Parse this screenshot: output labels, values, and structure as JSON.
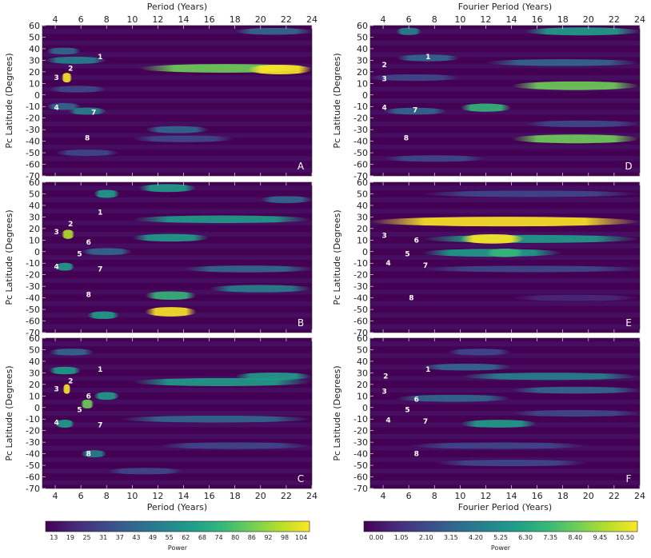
{
  "chart_data": {
    "type": "heatmap",
    "panels": [
      {
        "id": "A",
        "label": "A",
        "column": "left",
        "bands": [
          {
            "lat": 23,
            "p0": 10.5,
            "p1": 24,
            "i": 0.75
          },
          {
            "lat": 22,
            "p0": 19,
            "p1": 24,
            "i": 1.0
          },
          {
            "lat": 15,
            "p0": 4.5,
            "p1": 5.3,
            "i": 1.0
          },
          {
            "lat": 30,
            "p0": 3.2,
            "p1": 8,
            "i": 0.4
          },
          {
            "lat": -14,
            "p0": 5,
            "p1": 8,
            "i": 0.4
          },
          {
            "lat": -30,
            "p0": 11,
            "p1": 16,
            "i": 0.35
          },
          {
            "lat": 55,
            "p0": 18,
            "p1": 24,
            "i": 0.3
          },
          {
            "lat": -38,
            "p0": 10,
            "p1": 18,
            "i": 0.25
          },
          {
            "lat": -10,
            "p0": 3.3,
            "p1": 6,
            "i": 0.35
          },
          {
            "lat": -50,
            "p0": 4,
            "p1": 9,
            "i": 0.2
          },
          {
            "lat": 5,
            "p0": 3.5,
            "p1": 8,
            "i": 0.25
          },
          {
            "lat": 38,
            "p0": 3.3,
            "p1": 6,
            "i": 0.3
          }
        ]
      },
      {
        "id": "B",
        "label": "B",
        "column": "left",
        "bands": [
          {
            "lat": -52,
            "p0": 11,
            "p1": 15,
            "i": 0.95
          },
          {
            "lat": -38,
            "p0": 11,
            "p1": 15,
            "i": 0.7
          },
          {
            "lat": 55,
            "p0": 10.5,
            "p1": 15,
            "i": 0.6
          },
          {
            "lat": 28,
            "p0": 10,
            "p1": 24,
            "i": 0.5
          },
          {
            "lat": 12,
            "p0": 10,
            "p1": 16,
            "i": 0.5
          },
          {
            "lat": 15,
            "p0": 4.5,
            "p1": 5.5,
            "i": 0.9
          },
          {
            "lat": -32,
            "p0": 16,
            "p1": 24,
            "i": 0.45
          },
          {
            "lat": -15,
            "p0": 14,
            "p1": 24,
            "i": 0.3
          },
          {
            "lat": 45,
            "p0": 20,
            "p1": 24,
            "i": 0.35
          },
          {
            "lat": 50,
            "p0": 7,
            "p1": 9,
            "i": 0.6
          },
          {
            "lat": -55,
            "p0": 6.5,
            "p1": 9,
            "i": 0.5
          },
          {
            "lat": -13,
            "p0": 4,
            "p1": 5.5,
            "i": 0.55
          },
          {
            "lat": 0,
            "p0": 6,
            "p1": 10,
            "i": 0.35
          }
        ]
      },
      {
        "id": "C",
        "label": "C",
        "column": "left",
        "bands": [
          {
            "lat": 22,
            "p0": 10,
            "p1": 24,
            "i": 0.6
          },
          {
            "lat": 27,
            "p0": 18,
            "p1": 24,
            "i": 0.5
          },
          {
            "lat": 16,
            "p0": 4.6,
            "p1": 5.2,
            "i": 1.0
          },
          {
            "lat": 3,
            "p0": 6,
            "p1": 7,
            "i": 0.8
          },
          {
            "lat": -14,
            "p0": 4,
            "p1": 5.5,
            "i": 0.6
          },
          {
            "lat": -10,
            "p0": 9,
            "p1": 24,
            "i": 0.3
          },
          {
            "lat": -33,
            "p0": 12,
            "p1": 24,
            "i": 0.25
          },
          {
            "lat": 32,
            "p0": 3.5,
            "p1": 6,
            "i": 0.5
          },
          {
            "lat": 10,
            "p0": 7,
            "p1": 9,
            "i": 0.5
          },
          {
            "lat": -40,
            "p0": 6,
            "p1": 8,
            "i": 0.4
          },
          {
            "lat": 48,
            "p0": 3.5,
            "p1": 7,
            "i": 0.3
          },
          {
            "lat": -55,
            "p0": 8,
            "p1": 14,
            "i": 0.2
          }
        ]
      },
      {
        "id": "D",
        "label": "D",
        "column": "right",
        "bands": [
          {
            "lat": -38,
            "p0": 14,
            "p1": 24,
            "i": 0.8
          },
          {
            "lat": 8,
            "p0": 14,
            "p1": 24,
            "i": 0.75
          },
          {
            "lat": -11,
            "p0": 10,
            "p1": 14,
            "i": 0.65
          },
          {
            "lat": 55,
            "p0": 15,
            "p1": 24,
            "i": 0.6
          },
          {
            "lat": 55,
            "p0": 5,
            "p1": 7,
            "i": 0.45
          },
          {
            "lat": 28,
            "p0": 12,
            "p1": 24,
            "i": 0.3
          },
          {
            "lat": 32,
            "p0": 5,
            "p1": 10,
            "i": 0.3
          },
          {
            "lat": 15,
            "p0": 3,
            "p1": 10,
            "i": 0.25
          },
          {
            "lat": -14,
            "p0": 4,
            "p1": 9,
            "i": 0.3
          },
          {
            "lat": -25,
            "p0": 15,
            "p1": 24,
            "i": 0.25
          },
          {
            "lat": -55,
            "p0": 4,
            "p1": 12,
            "i": 0.2
          }
        ]
      },
      {
        "id": "E",
        "label": "E",
        "column": "right",
        "bands": [
          {
            "lat": 26,
            "p0": 3,
            "p1": 24,
            "i": 1.0
          },
          {
            "lat": 11,
            "p0": 7,
            "p1": 24,
            "i": 0.6
          },
          {
            "lat": 11,
            "p0": 10,
            "p1": 15,
            "i": 0.95
          },
          {
            "lat": -1,
            "p0": 7,
            "p1": 18,
            "i": 0.55
          },
          {
            "lat": -1,
            "p0": 12,
            "p1": 15,
            "i": 0.7
          },
          {
            "lat": -15,
            "p0": 7,
            "p1": 24,
            "i": 0.2
          },
          {
            "lat": -40,
            "p0": 14,
            "p1": 24,
            "i": 0.15
          },
          {
            "lat": 50,
            "p0": 7,
            "p1": 24,
            "i": 0.2
          }
        ]
      },
      {
        "id": "F",
        "label": "F",
        "column": "right",
        "bands": [
          {
            "lat": -14,
            "p0": 10,
            "p1": 16,
            "i": 0.55
          },
          {
            "lat": 27,
            "p0": 10,
            "p1": 24,
            "i": 0.4
          },
          {
            "lat": 8,
            "p0": 5,
            "p1": 14,
            "i": 0.35
          },
          {
            "lat": 35,
            "p0": 7,
            "p1": 14,
            "i": 0.3
          },
          {
            "lat": 48,
            "p0": 9,
            "p1": 14,
            "i": 0.25
          },
          {
            "lat": -33,
            "p0": 6,
            "p1": 20,
            "i": 0.2
          },
          {
            "lat": 15,
            "p0": 14,
            "p1": 24,
            "i": 0.3
          },
          {
            "lat": -5,
            "p0": 14,
            "p1": 24,
            "i": 0.25
          },
          {
            "lat": -48,
            "p0": 8,
            "p1": 20,
            "i": 0.2
          }
        ]
      }
    ],
    "x_range": [
      3,
      24
    ],
    "y_range": [
      -70,
      60
    ],
    "x_ticks": [
      "4",
      "6",
      "8",
      "10",
      "12",
      "14",
      "16",
      "18",
      "20",
      "22",
      "24"
    ],
    "x_tick_values": [
      4,
      6,
      8,
      10,
      12,
      14,
      16,
      18,
      20,
      22,
      24
    ],
    "y_ticks": [
      "60",
      "50",
      "40",
      "30",
      "20",
      "10",
      "0",
      "-10",
      "-20",
      "-30",
      "-40",
      "-50",
      "-60",
      "-70"
    ],
    "y_tick_values": [
      60,
      50,
      40,
      30,
      20,
      10,
      0,
      -10,
      -20,
      -30,
      -40,
      -50,
      -60,
      -70
    ],
    "left_xlabel_top": "Period (Years)",
    "left_xlabel_bottom": "Period (Years)",
    "right_xlabel_top": "Fourier Period (Years)",
    "right_xlabel_bottom": "Fourier Period (Years)",
    "ylabel": "Pc Latitude (Degrees)",
    "markers": {
      "A": [
        {
          "t": "1",
          "x": 7.5,
          "y": 33
        },
        {
          "t": "2",
          "x": 5.2,
          "y": 23
        },
        {
          "t": "3",
          "x": 4.1,
          "y": 15
        },
        {
          "t": "4",
          "x": 4.1,
          "y": -11
        },
        {
          "t": "7",
          "x": 7,
          "y": -15
        },
        {
          "t": "8",
          "x": 6.5,
          "y": -37
        }
      ],
      "B": [
        {
          "t": "1",
          "x": 7.5,
          "y": 34
        },
        {
          "t": "2",
          "x": 5.2,
          "y": 24
        },
        {
          "t": "3",
          "x": 4.1,
          "y": 17
        },
        {
          "t": "6",
          "x": 6.6,
          "y": 8
        },
        {
          "t": "5",
          "x": 5.9,
          "y": -2
        },
        {
          "t": "4",
          "x": 4.1,
          "y": -13
        },
        {
          "t": "7",
          "x": 7.5,
          "y": -15
        },
        {
          "t": "8",
          "x": 6.6,
          "y": -37
        }
      ],
      "C": [
        {
          "t": "1",
          "x": 7.5,
          "y": 33
        },
        {
          "t": "2",
          "x": 5.2,
          "y": 23
        },
        {
          "t": "3",
          "x": 4.1,
          "y": 16
        },
        {
          "t": "6",
          "x": 6.6,
          "y": 10
        },
        {
          "t": "5",
          "x": 5.9,
          "y": -2
        },
        {
          "t": "4",
          "x": 4.1,
          "y": -13
        },
        {
          "t": "7",
          "x": 7.5,
          "y": -15
        },
        {
          "t": "8",
          "x": 6.6,
          "y": -40
        }
      ],
      "D": [
        {
          "t": "1",
          "x": 7.5,
          "y": 33
        },
        {
          "t": "2",
          "x": 4.1,
          "y": 26
        },
        {
          "t": "3",
          "x": 4.1,
          "y": 14
        },
        {
          "t": "4",
          "x": 4.1,
          "y": -11
        },
        {
          "t": "7",
          "x": 6.5,
          "y": -13
        },
        {
          "t": "8",
          "x": 5.8,
          "y": -37
        }
      ],
      "E": [
        {
          "t": "3",
          "x": 4.1,
          "y": 14
        },
        {
          "t": "6",
          "x": 6.6,
          "y": 10
        },
        {
          "t": "5",
          "x": 5.9,
          "y": -2
        },
        {
          "t": "4",
          "x": 4.4,
          "y": -10
        },
        {
          "t": "7",
          "x": 7.3,
          "y": -12
        },
        {
          "t": "8",
          "x": 6.2,
          "y": -40
        }
      ],
      "F": [
        {
          "t": "1",
          "x": 7.5,
          "y": 33
        },
        {
          "t": "2",
          "x": 4.2,
          "y": 27
        },
        {
          "t": "3",
          "x": 4.1,
          "y": 14
        },
        {
          "t": "6",
          "x": 6.6,
          "y": 7
        },
        {
          "t": "5",
          "x": 5.9,
          "y": -2
        },
        {
          "t": "4",
          "x": 4.4,
          "y": -11
        },
        {
          "t": "7",
          "x": 7.3,
          "y": -12
        },
        {
          "t": "8",
          "x": 6.6,
          "y": -40
        }
      ]
    },
    "colorbar_left": {
      "label": "Power",
      "ticks": [
        "13",
        "19",
        "25",
        "31",
        "37",
        "43",
        "49",
        "55",
        "62",
        "68",
        "74",
        "80",
        "86",
        "92",
        "98",
        "104"
      ]
    },
    "colorbar_right": {
      "label": "Power",
      "ticks": [
        "0.00",
        "1.05",
        "2.10",
        "3.15",
        "4.20",
        "5.25",
        "6.30",
        "7.35",
        "8.40",
        "9.45",
        "10.50"
      ]
    },
    "colormap": [
      "#440154",
      "#482878",
      "#3e4989",
      "#31688e",
      "#26828e",
      "#1f9e89",
      "#35b779",
      "#6ece58",
      "#b5de2b",
      "#fde725"
    ]
  }
}
